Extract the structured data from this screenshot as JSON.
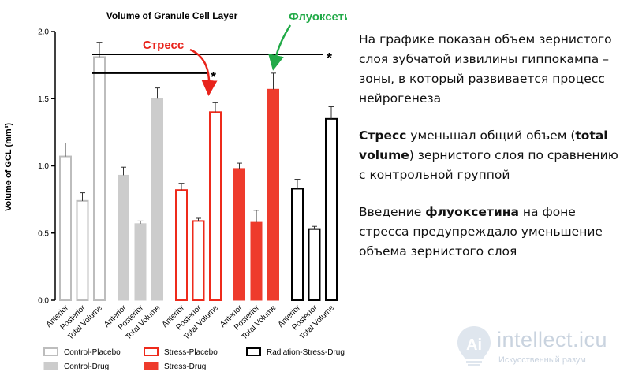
{
  "chart_data": {
    "type": "bar",
    "title": "Volume of Granule Cell Layer",
    "ylabel": "Volume of GCL (mm³)",
    "xlabel": "",
    "ylim": [
      0,
      2.0
    ],
    "yticks": [
      "0.0",
      "0.5",
      "1.0",
      "1.5",
      "2.0"
    ],
    "categories": [
      "Anterior",
      "Posterior",
      "Total Volume"
    ],
    "series": [
      {
        "name": "Control-Placebo",
        "style": "outline",
        "color": "#bdbdbd",
        "values": [
          1.07,
          0.74,
          1.81
        ],
        "errors": [
          0.1,
          0.06,
          0.11
        ]
      },
      {
        "name": "Control-Drug",
        "style": "filled",
        "color": "#cccccc",
        "values": [
          0.93,
          0.57,
          1.5
        ],
        "errors": [
          0.06,
          0.02,
          0.08
        ]
      },
      {
        "name": "Stress-Placebo",
        "style": "outline",
        "color": "#ee2a1b",
        "values": [
          0.82,
          0.59,
          1.4
        ],
        "errors": [
          0.05,
          0.02,
          0.07
        ]
      },
      {
        "name": "Stress-Drug",
        "style": "filled",
        "color": "#ee3b2c",
        "values": [
          0.98,
          0.58,
          1.57
        ],
        "errors": [
          0.04,
          0.09,
          0.12
        ]
      },
      {
        "name": "Radiation-Stress-Drug",
        "style": "outline",
        "color": "#000000",
        "values": [
          0.83,
          0.53,
          1.35
        ],
        "errors": [
          0.07,
          0.02,
          0.09
        ]
      }
    ],
    "annotations": [
      {
        "text": "Стресс",
        "color": "#e8231b"
      },
      {
        "text": "Флуоксетин",
        "color": "#22aa48"
      }
    ],
    "significance": [
      {
        "from": "Control-Placebo Total Volume",
        "to": "Stress-Placebo Total Volume",
        "y": 1.69,
        "label": "*"
      },
      {
        "from": "Control-Placebo Total Volume",
        "to": "Radiation-Stress-Drug Total Volume",
        "y": 1.83,
        "label": "*"
      }
    ],
    "legend_position": "bottom",
    "grid": false
  },
  "side_text": {
    "p1": "На графике показан объем зернистого слоя зубчатой извилины гиппокампа – зоны, в который развивается процесс нейрогенеза",
    "p2_bold": "Стресс",
    "p2_a": " уменьшал общий объем (",
    "p2_bold2": "total volume",
    "p2_b": ") зернистого слоя по сравнению с контрольной группой",
    "p3_a": "Введение ",
    "p3_bold": "флуоксетина",
    "p3_b": " на фоне стресса предупреждало уменьшение объема зернистого слоя"
  },
  "watermark": {
    "brand": "intellect.icu",
    "subtitle": "Искусственный разум",
    "icon": "lightbulb-logo-icon"
  }
}
